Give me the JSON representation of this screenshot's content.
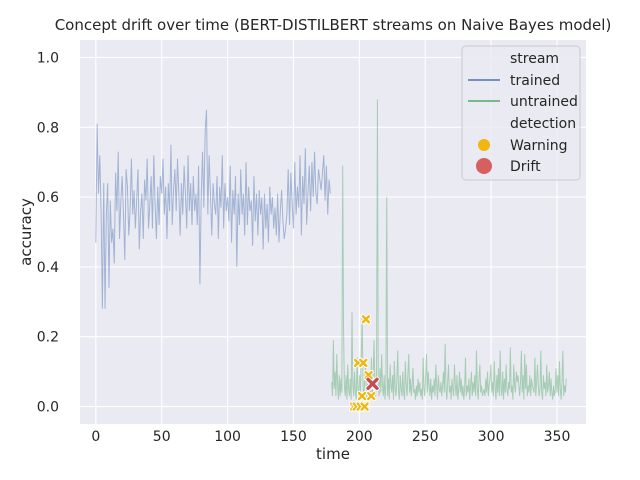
{
  "chart_data": {
    "type": "line",
    "title": "Concept drift over time (BERT-DISTILBERT streams on Naive Bayes model)",
    "xlabel": "time",
    "ylabel": "accuracy",
    "xlim": [
      -12,
      372
    ],
    "ylim": [
      -0.05,
      1.05
    ],
    "xticks": [
      0,
      50,
      100,
      150,
      200,
      250,
      300,
      350
    ],
    "yticks": [
      0.0,
      0.2,
      0.4,
      0.6,
      0.8,
      1.0
    ],
    "grid": true,
    "legend_position": "top-right",
    "legend": {
      "stream_title": "stream",
      "stream_items": [
        {
          "label": "trained",
          "color": "#4c72b0"
        },
        {
          "label": "untrained",
          "color": "#55a868"
        }
      ],
      "detection_title": "detection",
      "detection_items": [
        {
          "label": "Warning",
          "color": "#f2b70f"
        },
        {
          "label": "Drift",
          "color": "#d65f5f"
        }
      ]
    },
    "series": [
      {
        "name": "trained",
        "color": "#4c72b0",
        "x_start": 0,
        "values": [
          0.47,
          0.81,
          0.61,
          0.72,
          0.56,
          0.28,
          0.64,
          0.28,
          0.55,
          0.64,
          0.34,
          0.59,
          0.47,
          0.51,
          0.41,
          0.67,
          0.56,
          0.73,
          0.48,
          0.59,
          0.66,
          0.55,
          0.42,
          0.68,
          0.63,
          0.49,
          0.56,
          0.71,
          0.55,
          0.62,
          0.51,
          0.59,
          0.68,
          0.45,
          0.56,
          0.61,
          0.48,
          0.65,
          0.59,
          0.71,
          0.51,
          0.58,
          0.66,
          0.51,
          0.72,
          0.58,
          0.48,
          0.63,
          0.52,
          0.66,
          0.61,
          0.71,
          0.55,
          0.63,
          0.48,
          0.64,
          0.56,
          0.75,
          0.52,
          0.62,
          0.68,
          0.56,
          0.71,
          0.61,
          0.49,
          0.64,
          0.55,
          0.69,
          0.61,
          0.51,
          0.72,
          0.56,
          0.64,
          0.52,
          0.66,
          0.56,
          0.61,
          0.52,
          0.69,
          0.35,
          0.6,
          0.73,
          0.57,
          0.79,
          0.85,
          0.55,
          0.72,
          0.61,
          0.49,
          0.64,
          0.58,
          0.55,
          0.66,
          0.48,
          0.63,
          0.57,
          0.72,
          0.51,
          0.64,
          0.56,
          0.6,
          0.53,
          0.69,
          0.47,
          0.62,
          0.55,
          0.66,
          0.4,
          0.61,
          0.52,
          0.68,
          0.55,
          0.61,
          0.49,
          0.7,
          0.52,
          0.63,
          0.56,
          0.59,
          0.46,
          0.66,
          0.53,
          0.61,
          0.49,
          0.62,
          0.55,
          0.6,
          0.45,
          0.61,
          0.51,
          0.58,
          0.47,
          0.63,
          0.55,
          0.6,
          0.51,
          0.57,
          0.49,
          0.61,
          0.47,
          0.56,
          0.62,
          0.53,
          0.48,
          0.51,
          0.55,
          0.68,
          0.52,
          0.67,
          0.58,
          0.51,
          0.7,
          0.55,
          0.63,
          0.57,
          0.72,
          0.49,
          0.66,
          0.58,
          0.74,
          0.52,
          0.61,
          0.69,
          0.56,
          0.7,
          0.6,
          0.73,
          0.61,
          0.58,
          0.68,
          0.65,
          0.62,
          0.67,
          0.72,
          0.59,
          0.69,
          0.55,
          0.65,
          0.61
        ],
        "x_end": 178
      },
      {
        "name": "untrained",
        "color": "#55a868",
        "x_start": 179,
        "values": [
          0.07,
          0.03,
          0.19,
          0.05,
          0.1,
          0.03,
          0.15,
          0.06,
          0.02,
          0.09,
          0.03,
          0.08,
          0.04,
          0.69,
          0.22,
          0.06,
          0.03,
          0.09,
          0.02,
          0.12,
          0.05,
          0.03,
          0.08,
          0.02,
          0.27,
          0.06,
          0.03,
          0.1,
          0.04,
          0.02,
          0.14,
          0.05,
          0.03,
          0.09,
          0.04,
          0.15,
          0.26,
          0.06,
          0.02,
          0.08,
          0.12,
          0.02,
          0.05,
          0.08,
          0.03,
          0.06,
          0.02,
          0.14,
          0.03,
          0.09,
          0.19,
          0.06,
          0.03,
          0.1,
          0.88,
          0.06,
          0.03,
          0.11,
          0.04,
          0.15,
          0.06,
          0.03,
          0.09,
          0.02,
          0.06,
          0.6,
          0.03,
          0.08,
          0.02,
          0.12,
          0.06,
          0.04,
          0.09,
          0.02,
          0.13,
          0.05,
          0.03,
          0.08,
          0.16,
          0.04,
          0.02,
          0.09,
          0.05,
          0.03,
          0.1,
          0.04,
          0.02,
          0.13,
          0.06,
          0.03,
          0.09,
          0.15,
          0.04,
          0.08,
          0.03,
          0.06,
          0.11,
          0.04,
          0.05,
          0.02,
          0.06,
          0.03,
          0.08,
          0.04,
          0.07,
          0.03,
          0.05,
          0.02,
          0.14,
          0.05,
          0.03,
          0.09,
          0.15,
          0.04,
          0.1,
          0.06,
          0.03,
          0.08,
          0.02,
          0.06,
          0.04,
          0.08,
          0.03,
          0.12,
          0.06,
          0.02,
          0.09,
          0.05,
          0.04,
          0.07,
          0.03,
          0.06,
          0.1,
          0.04,
          0.18,
          0.05,
          0.02,
          0.07,
          0.12,
          0.04,
          0.06,
          0.02,
          0.08,
          0.05,
          0.03,
          0.12,
          0.06,
          0.03,
          0.09,
          0.02,
          0.05,
          0.1,
          0.04,
          0.08,
          0.03,
          0.06,
          0.02,
          0.05,
          0.14,
          0.03,
          0.06,
          0.04,
          0.08,
          0.02,
          0.06,
          0.1,
          0.03,
          0.07,
          0.04,
          0.09,
          0.03,
          0.16,
          0.05,
          0.02,
          0.08,
          0.12,
          0.04,
          0.06,
          0.03,
          0.04,
          0.05,
          0.03,
          0.08,
          0.04,
          0.1,
          0.03,
          0.06,
          0.08,
          0.12,
          0.04,
          0.07,
          0.03,
          0.13,
          0.06,
          0.02,
          0.09,
          0.04,
          0.11,
          0.03,
          0.16,
          0.05,
          0.03,
          0.1,
          0.02,
          0.08,
          0.04,
          0.12,
          0.05,
          0.03,
          0.07,
          0.05,
          0.17,
          0.04,
          0.06,
          0.02,
          0.12,
          0.06,
          0.04,
          0.1,
          0.07,
          0.09,
          0.06,
          0.03,
          0.07,
          0.16,
          0.04,
          0.09,
          0.02,
          0.15,
          0.05,
          0.12,
          0.03,
          0.06,
          0.04,
          0.09,
          0.03,
          0.08,
          0.06,
          0.05,
          0.04,
          0.14,
          0.03,
          0.07,
          0.12,
          0.06,
          0.03,
          0.05,
          0.16,
          0.04,
          0.02,
          0.09,
          0.05,
          0.07,
          0.03,
          0.12,
          0.04,
          0.06,
          0.1,
          0.03,
          0.08,
          0.04,
          0.02,
          0.06,
          0.03,
          0.05,
          0.11,
          0.04,
          0.09,
          0.03,
          0.13,
          0.05,
          0.02,
          0.07,
          0.16,
          0.03,
          0.06,
          0.04,
          0.08
        ],
        "x_end": 357
      }
    ],
    "warnings": [
      {
        "x": 196,
        "y": 0.0
      },
      {
        "x": 198,
        "y": 0.0
      },
      {
        "x": 199,
        "y": 0.125
      },
      {
        "x": 201,
        "y": 0.0
      },
      {
        "x": 202,
        "y": 0.03
      },
      {
        "x": 203,
        "y": 0.125
      },
      {
        "x": 204,
        "y": 0.0
      },
      {
        "x": 205,
        "y": 0.25
      },
      {
        "x": 207,
        "y": 0.09
      },
      {
        "x": 209,
        "y": 0.03
      },
      {
        "x": 210,
        "y": 0.06
      }
    ],
    "drifts": [
      {
        "x": 210,
        "y": 0.065
      }
    ]
  }
}
